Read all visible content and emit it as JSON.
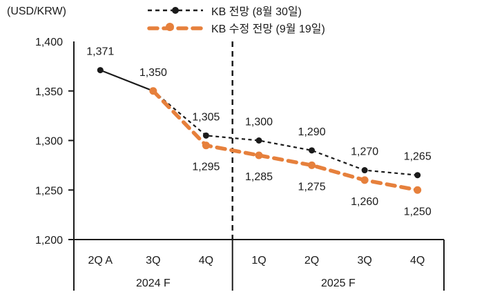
{
  "title": "(USD/KRW)",
  "legend": {
    "items": [
      {
        "label": "KB 전망 (8월 30일)",
        "color": "#1a1a1a",
        "marker": "dot-on-dash",
        "line_style": "thin-dash"
      },
      {
        "label": "KB 수정 전망 (9월 19일)",
        "color": "#E6803C",
        "marker": "dot-on-dash",
        "line_style": "thick-dash"
      }
    ]
  },
  "chart_data": {
    "type": "line",
    "title": "(USD/KRW)",
    "categories": [
      "2Q A",
      "3Q",
      "4Q",
      "1Q",
      "2Q",
      "3Q",
      "4Q"
    ],
    "category_groups": [
      {
        "label": "2024 F",
        "span": 3
      },
      {
        "label": "2025 F",
        "span": 4
      }
    ],
    "divider_after_category_index": 2,
    "ylim": [
      1200,
      1400
    ],
    "yticks": [
      "1,200",
      "1,250",
      "1,300",
      "1,350",
      "1,400"
    ],
    "ytick_values": [
      1200,
      1250,
      1300,
      1350,
      1400
    ],
    "grid": false,
    "legend_position": "top-center",
    "series": [
      {
        "name": "KB 전망 (8월 30일)",
        "color": "#1a1a1a",
        "style": "dashed, first segment solid (actual)",
        "solid_until_index": 1,
        "values": [
          1371,
          1350,
          1305,
          1300,
          1290,
          1270,
          1265
        ],
        "labels": [
          "1,371",
          "1,350",
          "1,305",
          "1,300",
          "1,290",
          "1,270",
          "1,265"
        ],
        "label_side": "above"
      },
      {
        "name": "KB 수정 전망 (9월 19일)",
        "color": "#E6803C",
        "style": "thick dashed",
        "values": [
          null,
          1350,
          1295,
          1285,
          1275,
          1260,
          1250
        ],
        "labels": [
          null,
          null,
          "1,295",
          "1,285",
          "1,275",
          "1,260",
          "1,250"
        ],
        "label_side": "below"
      }
    ]
  }
}
